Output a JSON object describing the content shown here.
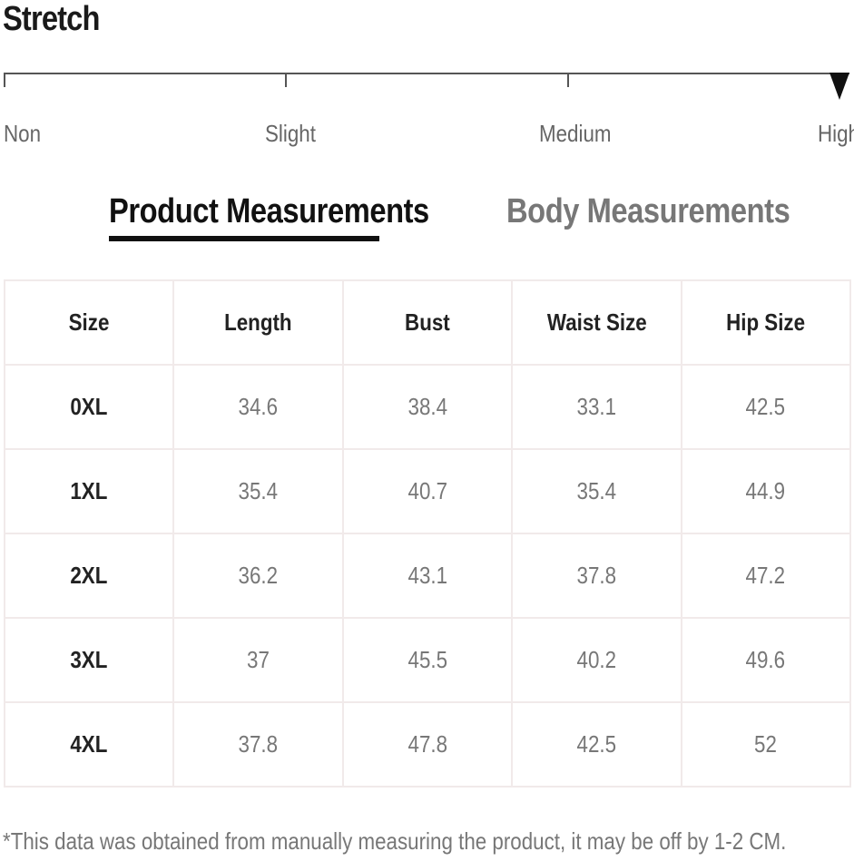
{
  "stretch": {
    "title": "Stretch",
    "levels": [
      "Non",
      "Slight",
      "Medium",
      "High"
    ],
    "selected": "High"
  },
  "tabs": {
    "product": "Product Measurements",
    "body": "Body Measurements",
    "active": "Product Measurements"
  },
  "table": {
    "headers": [
      "Size",
      "Length",
      "Bust",
      "Waist Size",
      "Hip Size"
    ],
    "rows": [
      [
        "0XL",
        "34.6",
        "38.4",
        "33.1",
        "42.5"
      ],
      [
        "1XL",
        "35.4",
        "40.7",
        "35.4",
        "44.9"
      ],
      [
        "2XL",
        "36.2",
        "43.1",
        "37.8",
        "47.2"
      ],
      [
        "3XL",
        "37",
        "45.5",
        "40.2",
        "49.6"
      ],
      [
        "4XL",
        "37.8",
        "47.8",
        "42.5",
        "52"
      ]
    ]
  },
  "footnote": "*This data was obtained from manually measuring the product, it may be off by 1-2 CM.",
  "colors": {
    "text_dark": "#222222",
    "text_muted": "#777777",
    "table_border": "#f1eaea",
    "underline": "#111111"
  }
}
